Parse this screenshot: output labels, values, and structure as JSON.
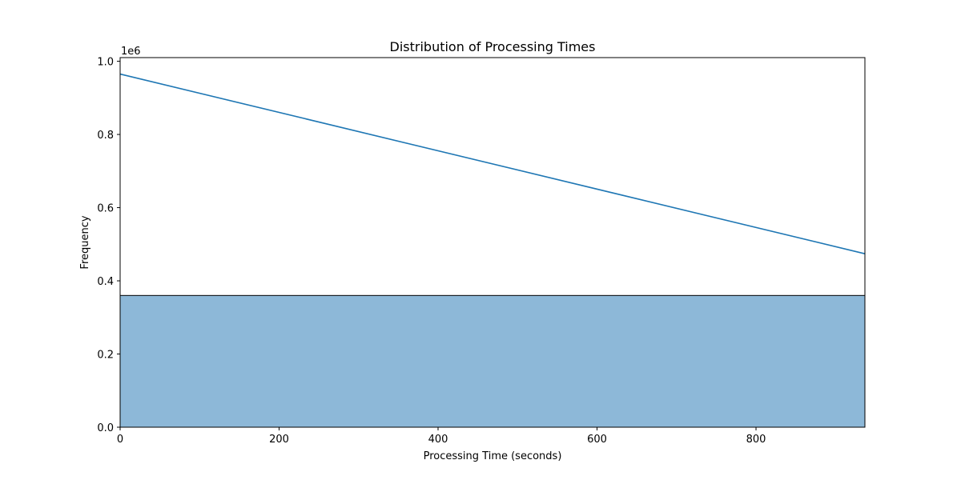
{
  "chart_data": {
    "type": "bar",
    "title": "Distribution of Processing Times",
    "xlabel": "Processing Time (seconds)",
    "ylabel": "Frequency",
    "y_offset_text": "1e6",
    "xlim": [
      0,
      937
    ],
    "ylim": [
      0,
      1010000
    ],
    "xticks": [
      0,
      200,
      400,
      600,
      800
    ],
    "xtick_labels": [
      "0",
      "200",
      "400",
      "600",
      "800"
    ],
    "yticks": [
      0,
      200000,
      400000,
      600000,
      800000,
      1000000
    ],
    "ytick_labels": [
      "0.0",
      "0.2",
      "0.4",
      "0.6",
      "0.8",
      "1.0"
    ],
    "bars": [
      {
        "x0": 0,
        "x1": 937,
        "value": 360000
      }
    ],
    "series": [
      {
        "kind": "line",
        "x": [
          0,
          937
        ],
        "y": [
          965000,
          474000
        ]
      }
    ],
    "grid": false,
    "colors": {
      "bar_fill": "#8db8d8",
      "bar_edge": "#000000",
      "line": "#1f77b4",
      "axes": "#000000"
    }
  }
}
